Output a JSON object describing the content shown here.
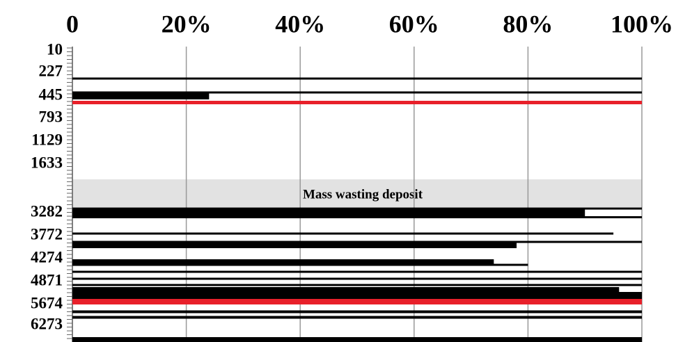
{
  "chart_data": {
    "type": "bar",
    "orientation": "horizontal",
    "xlim": [
      0,
      100
    ],
    "xticks": [
      0,
      {
        "value": 20,
        "label": "20%"
      },
      {
        "value": 40,
        "label": "40%"
      },
      {
        "value": 60,
        "label": "60%"
      },
      {
        "value": 80,
        "label": "80%"
      },
      {
        "value": 100,
        "label": "100%"
      }
    ],
    "grid": true,
    "ytick_labels": [
      "10",
      "227",
      "445",
      "793",
      "1129",
      "1633",
      "3282",
      "3772",
      "4274",
      "4871",
      "5674",
      "6273"
    ],
    "annotation": "Mass wasting deposit",
    "values": [
      100,
      100,
      24,
      100,
      100,
      90,
      100,
      95,
      100,
      78,
      74,
      80,
      100,
      100,
      100,
      96,
      100,
      100,
      100,
      100,
      100
    ],
    "colors": [
      "#000000",
      "#000000",
      "#000000",
      "#e8202a",
      "#000000",
      "#000000",
      "#000000",
      "#000000",
      "#000000",
      "#000000",
      "#000000",
      "#000000",
      "#000000",
      "#000000",
      "#000000",
      "#000000",
      "#000000",
      "#e8202a",
      "#000000",
      "#000000",
      "#000000"
    ]
  }
}
